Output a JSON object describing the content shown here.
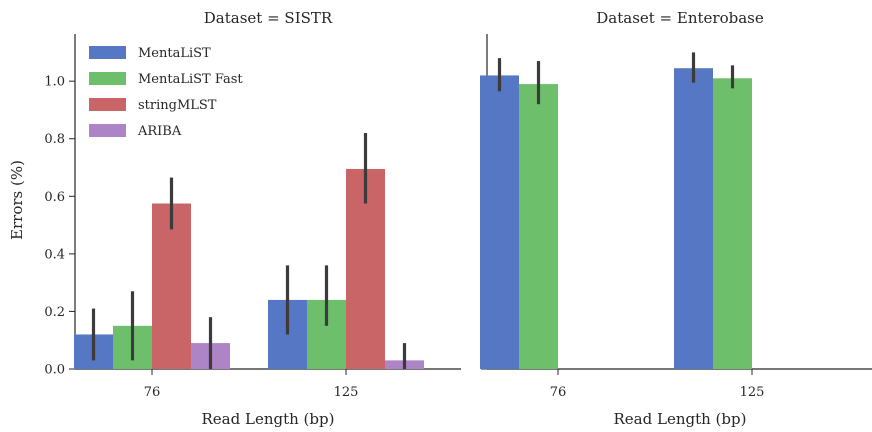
{
  "chart_data": {
    "type": "bar",
    "ylabel": "Errors (%)",
    "ylim": [
      0,
      1.15
    ],
    "yticks": [
      "0.0",
      "0.2",
      "0.4",
      "0.6",
      "0.8",
      "1.0"
    ],
    "legend": {
      "placement": "top-left",
      "entries": [
        "MentaLiST",
        "MentaLiST Fast",
        "stringMLST",
        "ARIBA"
      ]
    },
    "colors": [
      "#5677c3",
      "#6dbf6b",
      "#c96566",
      "#ad84c6"
    ],
    "panels": [
      {
        "title": "Dataset = SISTR",
        "xlabel": "Read Length (bp)",
        "categories": [
          "76",
          "125"
        ],
        "series": [
          {
            "name": "MentaLiST",
            "values": [
              0.12,
              0.24
            ],
            "ci": [
              [
                0.03,
                0.21
              ],
              [
                0.12,
                0.36
              ]
            ]
          },
          {
            "name": "MentaLiST Fast",
            "values": [
              0.15,
              0.24
            ],
            "ci": [
              [
                0.03,
                0.27
              ],
              [
                0.15,
                0.36
              ]
            ]
          },
          {
            "name": "stringMLST",
            "values": [
              0.575,
              0.695
            ],
            "ci": [
              [
                0.485,
                0.665
              ],
              [
                0.575,
                0.82
              ]
            ]
          },
          {
            "name": "ARIBA",
            "values": [
              0.09,
              0.03
            ],
            "ci": [
              [
                0.0,
                0.18
              ],
              [
                0.0,
                0.09
              ]
            ]
          }
        ]
      },
      {
        "title": "Dataset = Enterobase",
        "xlabel": "Read Length (bp)",
        "categories": [
          "76",
          "125"
        ],
        "series": [
          {
            "name": "MentaLiST",
            "values": [
              1.02,
              1.045
            ],
            "ci": [
              [
                0.965,
                1.08
              ],
              [
                0.995,
                1.1
              ]
            ]
          },
          {
            "name": "MentaLiST Fast",
            "values": [
              0.99,
              1.01
            ],
            "ci": [
              [
                0.92,
                1.07
              ],
              [
                0.975,
                1.055
              ]
            ]
          },
          {
            "name": "stringMLST",
            "values": [
              null,
              null
            ],
            "ci": [
              null,
              null
            ]
          },
          {
            "name": "ARIBA",
            "values": [
              null,
              null
            ],
            "ci": [
              null,
              null
            ]
          }
        ]
      }
    ]
  }
}
